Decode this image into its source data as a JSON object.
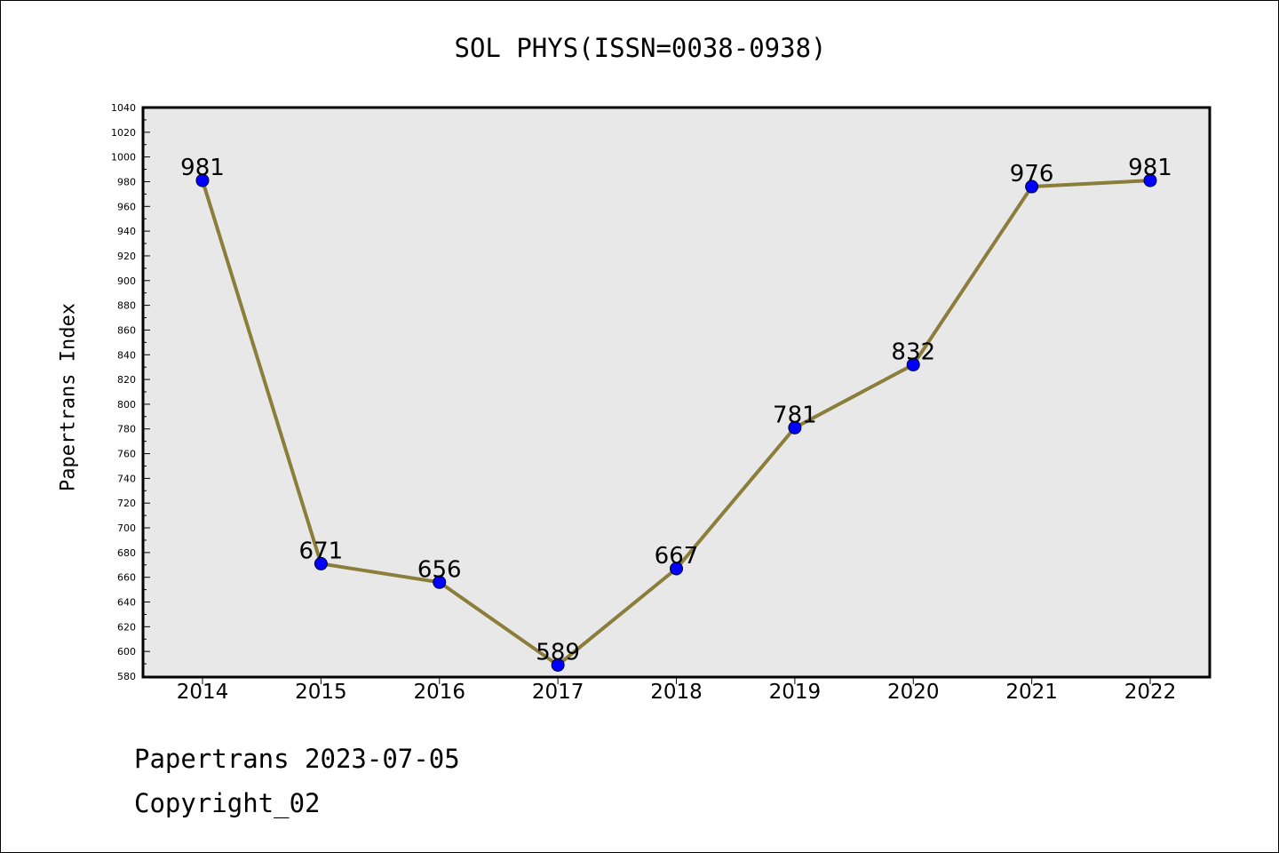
{
  "chart_data": {
    "type": "line",
    "title": "SOL PHYS(ISSN=0038-0938)",
    "ylabel": "Papertrans Index",
    "xlabel": "",
    "categories": [
      "2014",
      "2015",
      "2016",
      "2017",
      "2018",
      "2019",
      "2020",
      "2021",
      "2022"
    ],
    "series": [
      {
        "values": [
          981,
          671,
          656,
          589,
          667,
          781,
          832,
          976,
          981
        ]
      }
    ],
    "ylim": [
      580,
      1040
    ],
    "yticks": [
      580,
      600,
      620,
      640,
      660,
      680,
      700,
      720,
      740,
      760,
      780,
      800,
      820,
      840,
      860,
      880,
      900,
      920,
      940,
      960,
      980,
      1000,
      1020,
      1040
    ],
    "line_color": "#8b7d3a",
    "marker_color": "#0000ff",
    "plot_background": "#e8e8e8",
    "grid": false,
    "data_labels": true
  },
  "footer": {
    "line1": "Papertrans 2023-07-05",
    "line2": "Copyright_02"
  }
}
